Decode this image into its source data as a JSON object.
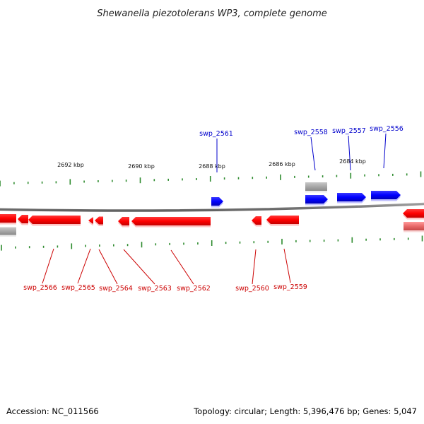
{
  "title": "Shewanella piezotolerans WP3, complete genome",
  "accession": "Accession: NC_011566",
  "summary": "Topology: circular; Length: 5,396,476 bp; Genes: 5,047",
  "scale_labels": [
    "2692 kbp",
    "2690 kbp",
    "2688 kbp",
    "2686 kbp",
    "2684 kbp"
  ],
  "forward_gene_labels": [
    "swp_2561",
    "swp_2558",
    "swp_2557",
    "swp_2556"
  ],
  "reverse_gene_labels": [
    "swp_2566",
    "swp_2565",
    "swp_2564",
    "swp_2563",
    "swp_2562",
    "swp_2560",
    "swp_2559"
  ],
  "colors": {
    "forward_strand": "#0000ff",
    "reverse_strand": "#ff0000",
    "other_feature": "#a8a8a8",
    "backbone": "#808080",
    "tick": "#2e8b2e",
    "forward_label": "#0000cc",
    "reverse_label": "#cc0000"
  }
}
